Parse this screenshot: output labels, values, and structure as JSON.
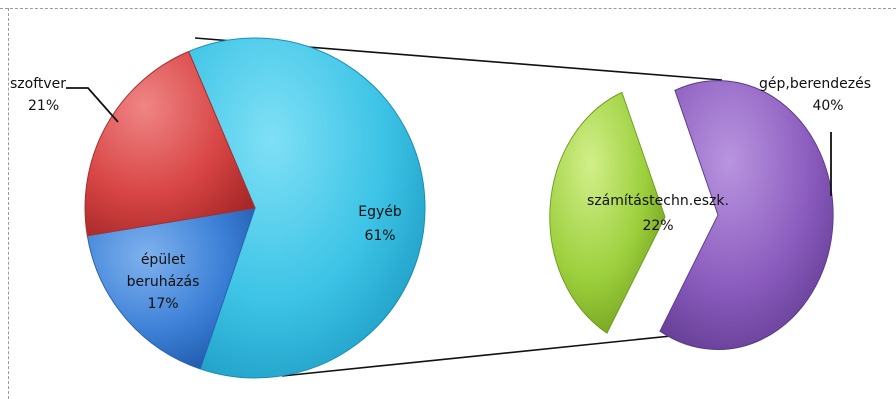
{
  "chart_data": {
    "type": "pie",
    "subtype": "bar-of-pie (pie of pie)",
    "main_pie": {
      "slices": [
        {
          "label": "Egyéb",
          "value": 61,
          "value_label": "61%",
          "color": "#3cc3e6"
        },
        {
          "label": "épület beruházás",
          "label_lines": [
            "épület",
            "beruházás"
          ],
          "value": 17,
          "value_label": "17%",
          "color": "#3b7fd6"
        },
        {
          "label": "szoftver",
          "value": 21,
          "value_label": "21%",
          "color": "#d84545"
        }
      ]
    },
    "secondary_pie": {
      "exploded": true,
      "slices": [
        {
          "label": "gép,berendezés",
          "value": 40,
          "value_label": "40%",
          "color": "#8a5bbd"
        },
        {
          "label": "számítástechn.eszk.",
          "value": 22,
          "value_label": "22%",
          "color": "#9ccf3c"
        }
      ]
    }
  }
}
